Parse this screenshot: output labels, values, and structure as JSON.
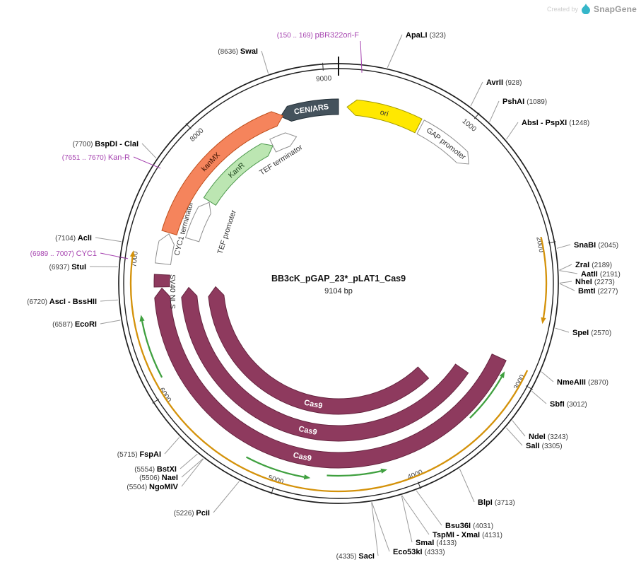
{
  "watermark": {
    "created_by": "Created by",
    "brand": "SnapGene"
  },
  "title": {
    "name": "BB3cK_pGAP_23*_pLAT1_Cas9",
    "size": "9104 bp"
  },
  "plasmid": {
    "length_bp": 9104
  },
  "colors": {
    "backbone": "#1f1f1f",
    "callout": "#9b9b9b",
    "primer": "#A644B0",
    "enzyme_name": "#000000",
    "enzyme_pos": "#3c3c3c",
    "scale": "#3f3f3f",
    "green_arrow": "#3FA03F",
    "orange_arc": "#D4920A"
  },
  "scale": [
    1000,
    2000,
    3000,
    4000,
    5000,
    6000,
    7000,
    8000,
    9000
  ],
  "features": [
    {
      "name": "CEN/ARS",
      "label": "CEN/ARS",
      "start": 8620,
      "end": 9104,
      "direction": -1,
      "fill": "#44525C",
      "outline": "#222E36",
      "text_color": "#FFFFFF"
    },
    {
      "name": "ori",
      "label": "ori",
      "start": 70,
      "end": 680,
      "direction": -1,
      "fill": "#FFE800",
      "outline": "#A39A00",
      "text_color": "#333333"
    },
    {
      "name": "GAP promoter",
      "label": "GAP promoter",
      "start": 700,
      "end": 1200,
      "direction": 1,
      "fill": "#FFFFFF",
      "outline": "#8F8F8F",
      "text_color": "#333333"
    },
    {
      "name": "Cas9 outer",
      "label": "Cas9",
      "start": 2900,
      "end": 6790,
      "direction": 1,
      "fill": "#8E3A5E",
      "outline": "#66243F",
      "text_color": "#FFFFFF"
    },
    {
      "name": "Cas9 middle",
      "label": "Cas9",
      "start": 3150,
      "end": 6790,
      "direction": 1,
      "fill": "#8E3A5E",
      "outline": "#66243F",
      "text_color": "#FFFFFF"
    },
    {
      "name": "Cas9 inner",
      "label": "Cas9",
      "start": 3450,
      "end": 6790,
      "direction": 1,
      "fill": "#8E3A5E",
      "outline": "#66243F",
      "text_color": "#FFFFFF"
    },
    {
      "name": "SV40 NLS",
      "label": "SV40 NLS",
      "start": 6800,
      "end": 6900,
      "direction": 0,
      "fill": "#8E3A5E",
      "outline": "#66243F",
      "text_color": "#333333"
    },
    {
      "name": "CYC1 terminator",
      "label": "CYC1 terminator",
      "start": 6990,
      "end": 7240,
      "direction": 1,
      "fill": "#FFFFFF",
      "outline": "#8F8F8F",
      "text_color": "#333333"
    },
    {
      "name": "kanMX",
      "label": "kanMX",
      "start": 7250,
      "end": 8640,
      "direction": 1,
      "fill": "#F5845C",
      "outline": "#BF4F1C",
      "text_color": "#3D1200"
    },
    {
      "name": "TEF promoter",
      "label": "TEF promoter",
      "start": 7250,
      "end": 7640,
      "direction": 1,
      "fill": "#FFFFFF",
      "outline": "#8F8F8F",
      "text_color": "#333333"
    },
    {
      "name": "KanR",
      "label": "KanR",
      "start": 7650,
      "end": 8460,
      "direction": 1,
      "fill": "#BCE6B2",
      "outline": "#4E9A4E",
      "text_color": "#173F17"
    },
    {
      "name": "TEF terminator",
      "label": "TEF terminator",
      "start": 8460,
      "end": 8700,
      "direction": 1,
      "fill": "#FFFFFF",
      "outline": "#8F8F8F",
      "text_color": "#333333"
    }
  ],
  "arcs": [
    {
      "name": "expression-arc-long",
      "start": 2900,
      "end": 7060,
      "direction": 1,
      "color": "#D4920A"
    },
    {
      "name": "expression-arc-short",
      "start": 1950,
      "end": 2560,
      "direction": 1,
      "color": "#D4920A"
    },
    {
      "name": "orf-arrow-left",
      "start": 6120,
      "end": 6600,
      "direction": 1,
      "color": "#3FA03F"
    },
    {
      "name": "orf-arrow-bottom-left",
      "start": 4760,
      "end": 5260,
      "direction": -1,
      "color": "#3FA03F"
    },
    {
      "name": "orf-arrow-bottom-right",
      "start": 4180,
      "end": 4640,
      "direction": -1,
      "color": "#3FA03F"
    },
    {
      "name": "orf-arrow-right",
      "start": 2980,
      "end": 3430,
      "direction": -1,
      "color": "#3FA03F"
    }
  ],
  "sites": [
    {
      "name": "pBR322ori-F",
      "pos": "(150 .. 169)",
      "bp": 160,
      "type": "primer",
      "order": "pos-name"
    },
    {
      "name": "ApaLI",
      "pos": "(323)",
      "bp": 323,
      "type": "enzyme",
      "order": "name-pos"
    },
    {
      "name": "AvrII",
      "pos": "(928)",
      "bp": 928,
      "type": "enzyme",
      "order": "name-pos"
    },
    {
      "name": "PshAI",
      "pos": "(1089)",
      "bp": 1089,
      "type": "enzyme",
      "order": "name-pos"
    },
    {
      "name": "AbsI - PspXI",
      "pos": "(1248)",
      "bp": 1248,
      "type": "enzyme",
      "order": "name-pos"
    },
    {
      "name": "SnaBI",
      "pos": "(2045)",
      "bp": 2045,
      "type": "enzyme",
      "order": "name-pos"
    },
    {
      "name": "ZraI",
      "pos": "(2189)",
      "bp": 2189,
      "type": "enzyme",
      "order": "name-pos"
    },
    {
      "name": "AatII",
      "pos": "(2191)",
      "bp": 2191,
      "type": "enzyme",
      "order": "name-pos"
    },
    {
      "name": "NheI",
      "pos": "(2273)",
      "bp": 2273,
      "type": "enzyme",
      "order": "name-pos"
    },
    {
      "name": "BmtI",
      "pos": "(2277)",
      "bp": 2277,
      "type": "enzyme",
      "order": "name-pos"
    },
    {
      "name": "SpeI",
      "pos": "(2570)",
      "bp": 2570,
      "type": "enzyme",
      "order": "name-pos"
    },
    {
      "name": "NmeAIII",
      "pos": "(2870)",
      "bp": 2870,
      "type": "enzyme",
      "order": "name-pos"
    },
    {
      "name": "SbfI",
      "pos": "(3012)",
      "bp": 3012,
      "type": "enzyme",
      "order": "name-pos"
    },
    {
      "name": "NdeI",
      "pos": "(3243)",
      "bp": 3243,
      "type": "enzyme",
      "order": "name-pos"
    },
    {
      "name": "SalI",
      "pos": "(3305)",
      "bp": 3305,
      "type": "enzyme",
      "order": "name-pos"
    },
    {
      "name": "BlpI",
      "pos": "(3713)",
      "bp": 3713,
      "type": "enzyme",
      "order": "name-pos"
    },
    {
      "name": "Bsu36I",
      "pos": "(4031)",
      "bp": 4031,
      "type": "enzyme",
      "order": "name-pos"
    },
    {
      "name": "TspMI - XmaI",
      "pos": "(4131)",
      "bp": 4131,
      "type": "enzyme",
      "order": "name-pos"
    },
    {
      "name": "SmaI",
      "pos": "(4133)",
      "bp": 4133,
      "type": "enzyme",
      "order": "name-pos"
    },
    {
      "name": "Eco53kI",
      "pos": "(4333)",
      "bp": 4333,
      "type": "enzyme",
      "order": "name-pos"
    },
    {
      "name": "SacI",
      "pos": "(4335)",
      "bp": 4335,
      "type": "enzyme",
      "order": "pos-name"
    },
    {
      "name": "PciI",
      "pos": "(5226)",
      "bp": 5226,
      "type": "enzyme",
      "order": "pos-name"
    },
    {
      "name": "NgoMIV",
      "pos": "(5504)",
      "bp": 5504,
      "type": "enzyme",
      "order": "pos-name"
    },
    {
      "name": "NaeI",
      "pos": "(5506)",
      "bp": 5506,
      "type": "enzyme",
      "order": "pos-name"
    },
    {
      "name": "BstXI",
      "pos": "(5554)",
      "bp": 5554,
      "type": "enzyme",
      "order": "pos-name"
    },
    {
      "name": "FspAI",
      "pos": "(5715)",
      "bp": 5715,
      "type": "enzyme",
      "order": "pos-name"
    },
    {
      "name": "EcoRI",
      "pos": "(6587)",
      "bp": 6587,
      "type": "enzyme",
      "order": "pos-name"
    },
    {
      "name": "AscI - BssHII",
      "pos": "(6720)",
      "bp": 6720,
      "type": "enzyme",
      "order": "pos-name"
    },
    {
      "name": "StuI",
      "pos": "(6937)",
      "bp": 6937,
      "type": "enzyme",
      "order": "pos-name"
    },
    {
      "name": "CYC1",
      "pos": "(6989 .. 7007)",
      "bp": 6998,
      "type": "primer",
      "order": "pos-name"
    },
    {
      "name": "AclI",
      "pos": "(7104)",
      "bp": 7104,
      "type": "enzyme",
      "order": "pos-name"
    },
    {
      "name": "Kan-R",
      "pos": "(7651 .. 7670)",
      "bp": 7660,
      "type": "primer",
      "order": "pos-name"
    },
    {
      "name": "BspDI - ClaI",
      "pos": "(7700)",
      "bp": 7700,
      "type": "enzyme",
      "order": "pos-name"
    },
    {
      "name": "SwaI",
      "pos": "(8636)",
      "bp": 8636,
      "type": "enzyme",
      "order": "pos-name"
    }
  ]
}
